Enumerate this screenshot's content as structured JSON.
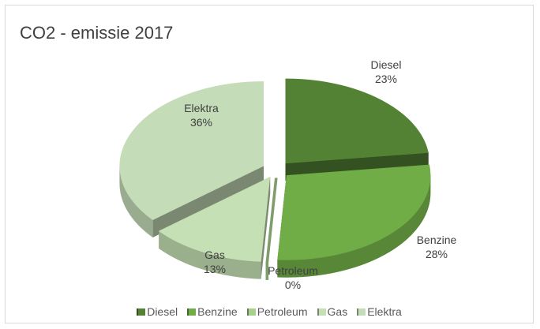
{
  "chart_data": {
    "type": "pie",
    "title": "CO2 - emissie 2017",
    "three_d": true,
    "exploded": true,
    "legend_position": "bottom",
    "slices": [
      {
        "label": "Diesel",
        "value": 23,
        "display": "23%",
        "color": "#548235"
      },
      {
        "label": "Benzine",
        "value": 28,
        "display": "28%",
        "color": "#70ad47"
      },
      {
        "label": "Petroleum",
        "value": 0,
        "display": "0%",
        "color": "#a9d18e"
      },
      {
        "label": "Gas",
        "value": 13,
        "display": "13%",
        "color": "#c5e0b4"
      },
      {
        "label": "Elektra",
        "value": 36,
        "display": "36%",
        "color": "#c5dcb8"
      }
    ]
  }
}
